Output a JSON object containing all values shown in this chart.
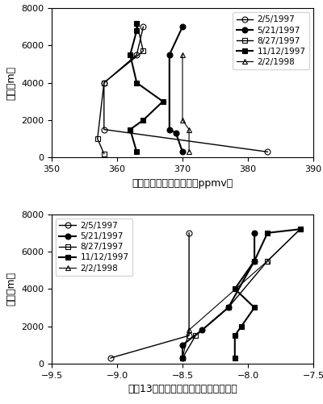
{
  "top_chart": {
    "xlabel": "二酸化炭素濃度（単位：ppmv）",
    "ylabel": "高度（m）",
    "xlim": [
      350,
      390
    ],
    "ylim": [
      0,
      8000
    ],
    "xticks": [
      350,
      360,
      370,
      380,
      390
    ],
    "yticks": [
      0,
      2000,
      4000,
      6000,
      8000
    ],
    "series": [
      {
        "label": "2/5/1997",
        "color": "black",
        "marker": "o",
        "mfc": "white",
        "lw": 1.0,
        "altitude": [
          300,
          1500,
          4000,
          5500,
          7000
        ],
        "x": [
          383,
          358,
          358,
          363,
          364
        ]
      },
      {
        "label": "5/21/1997",
        "color": "black",
        "marker": "o",
        "mfc": "black",
        "lw": 1.5,
        "altitude": [
          300,
          1300,
          1500,
          5500,
          7000
        ],
        "x": [
          370,
          369,
          368,
          368,
          370
        ]
      },
      {
        "label": "8/27/1997",
        "color": "black",
        "marker": "s",
        "mfc": "white",
        "lw": 1.0,
        "altitude": [
          200,
          1000,
          4000,
          5700,
          7200
        ],
        "x": [
          358,
          357,
          358,
          364,
          363
        ]
      },
      {
        "label": "11/12/1997",
        "color": "black",
        "marker": "s",
        "mfc": "black",
        "lw": 1.5,
        "altitude": [
          300,
          1500,
          2000,
          3000,
          4000,
          5500,
          6800,
          7200
        ],
        "x": [
          363,
          362,
          364,
          367,
          363,
          362,
          363,
          363
        ]
      },
      {
        "label": "2/2/1998",
        "color": "black",
        "marker": "^",
        "mfc": "white",
        "lw": 0.8,
        "altitude": [
          300,
          1500,
          2000,
          5500
        ],
        "x": [
          371,
          371,
          370,
          370
        ]
      }
    ]
  },
  "bottom_chart": {
    "xlabel": "炭甉13のデルタ値（単位：パーミル）",
    "ylabel": "高度（m）",
    "xlim": [
      -9.5,
      -7.5
    ],
    "ylim": [
      0,
      8000
    ],
    "xticks": [
      -9.5,
      -9.0,
      -8.5,
      -8.0,
      -7.5
    ],
    "yticks": [
      0,
      2000,
      4000,
      6000,
      8000
    ],
    "series": [
      {
        "label": "2/5/1997",
        "color": "black",
        "marker": "o",
        "mfc": "white",
        "lw": 1.0,
        "altitude": [
          300,
          1500,
          7000
        ],
        "x": [
          -9.05,
          -8.45,
          -8.45
        ]
      },
      {
        "label": "5/21/1997",
        "color": "black",
        "marker": "o",
        "mfc": "black",
        "lw": 1.5,
        "altitude": [
          300,
          1000,
          1800,
          3000,
          5500,
          7000
        ],
        "x": [
          -8.5,
          -8.5,
          -8.35,
          -8.15,
          -7.95,
          -7.95
        ]
      },
      {
        "label": "8/27/1997",
        "color": "black",
        "marker": "s",
        "mfc": "white",
        "lw": 1.0,
        "altitude": [
          300,
          1500,
          3000,
          5500,
          7200
        ],
        "x": [
          -8.5,
          -8.4,
          -8.15,
          -7.85,
          -7.6
        ]
      },
      {
        "label": "11/12/1997",
        "color": "black",
        "marker": "s",
        "mfc": "black",
        "lw": 1.5,
        "altitude": [
          300,
          1500,
          2000,
          3000,
          4000,
          5500,
          7000,
          7200
        ],
        "x": [
          -8.1,
          -8.1,
          -8.05,
          -7.95,
          -8.1,
          -7.95,
          -7.85,
          -7.6
        ]
      },
      {
        "label": "2/2/1998",
        "color": "black",
        "marker": "^",
        "mfc": "white",
        "lw": 0.8,
        "altitude": [
          300,
          1800,
          5500,
          7200
        ],
        "x": [
          -8.5,
          -8.45,
          -7.85,
          -7.6
        ]
      }
    ]
  },
  "font_size_label": 9,
  "font_size_tick": 8,
  "font_size_legend": 7.5,
  "marker_size": 5
}
